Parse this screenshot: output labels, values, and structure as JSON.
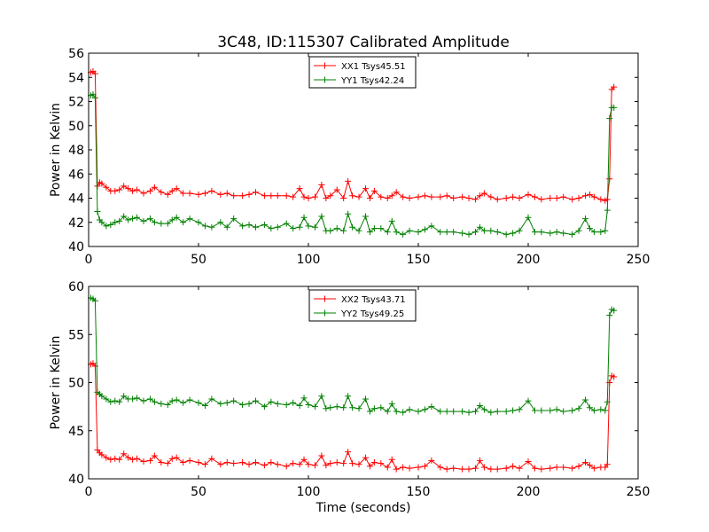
{
  "figure": {
    "title": "3C48, ID:115307 Calibrated Amplitude"
  },
  "chart_data": [
    {
      "type": "line",
      "title": "3C48, ID:115307 Calibrated Amplitude",
      "xlabel": "",
      "ylabel": "Power in Kelvin",
      "xlim": [
        0,
        250
      ],
      "ylim": [
        40,
        56
      ],
      "xticks": [
        0,
        50,
        100,
        150,
        200,
        250
      ],
      "yticks": [
        40,
        42,
        44,
        46,
        48,
        50,
        52,
        54,
        56
      ],
      "legend_position": "top-center",
      "grid": false,
      "series": [
        {
          "name": "XX1 Tsys45.51",
          "color": "#ff0000",
          "x": [
            1,
            2,
            3,
            4,
            5,
            6,
            8,
            10,
            12,
            14,
            16,
            18,
            20,
            22,
            25,
            28,
            30,
            33,
            36,
            38,
            40,
            43,
            46,
            50,
            53,
            56,
            60,
            63,
            66,
            70,
            73,
            76,
            80,
            83,
            86,
            90,
            93,
            96,
            98,
            100,
            103,
            106,
            108,
            110,
            113,
            116,
            118,
            120,
            123,
            126,
            128,
            130,
            133,
            136,
            138,
            140,
            143,
            146,
            150,
            153,
            156,
            160,
            163,
            166,
            170,
            173,
            176,
            178,
            180,
            183,
            186,
            190,
            193,
            196,
            200,
            203,
            206,
            210,
            213,
            216,
            220,
            223,
            226,
            228,
            230,
            233,
            235,
            236,
            237,
            238,
            239
          ],
          "values": [
            54.4,
            54.5,
            54.3,
            45.0,
            45.3,
            45.2,
            44.9,
            44.6,
            44.6,
            44.7,
            45.0,
            44.8,
            44.6,
            44.7,
            44.4,
            44.6,
            44.9,
            44.5,
            44.3,
            44.6,
            44.8,
            44.4,
            44.4,
            44.3,
            44.4,
            44.6,
            44.3,
            44.4,
            44.2,
            44.2,
            44.3,
            44.5,
            44.2,
            44.2,
            44.2,
            44.2,
            44.1,
            44.8,
            44.1,
            44.0,
            44.1,
            45.1,
            44.0,
            44.2,
            44.7,
            44.0,
            45.4,
            44.2,
            44.1,
            44.8,
            44.0,
            44.6,
            44.1,
            44.0,
            44.2,
            44.5,
            44.1,
            44.0,
            44.1,
            44.2,
            44.1,
            44.1,
            44.2,
            44.0,
            44.1,
            44.0,
            43.9,
            44.2,
            44.4,
            44.1,
            43.9,
            44.0,
            44.1,
            44.0,
            44.3,
            44.1,
            43.9,
            44.0,
            44.0,
            44.1,
            43.9,
            44.0,
            44.2,
            44.3,
            44.1,
            43.9,
            43.8,
            43.9,
            45.6,
            53.0,
            53.2
          ]
        },
        {
          "name": "YY1 Tsys42.24",
          "color": "#008000",
          "x": [
            1,
            2,
            3,
            4,
            5,
            6,
            8,
            10,
            12,
            14,
            16,
            18,
            20,
            22,
            25,
            28,
            30,
            33,
            36,
            38,
            40,
            43,
            46,
            50,
            53,
            56,
            60,
            63,
            66,
            70,
            73,
            76,
            80,
            83,
            86,
            90,
            93,
            96,
            98,
            100,
            103,
            106,
            108,
            110,
            113,
            116,
            118,
            120,
            123,
            126,
            128,
            130,
            133,
            136,
            138,
            140,
            143,
            146,
            150,
            153,
            156,
            160,
            163,
            166,
            170,
            173,
            176,
            178,
            180,
            183,
            186,
            190,
            193,
            196,
            200,
            203,
            206,
            210,
            213,
            216,
            220,
            223,
            226,
            228,
            230,
            233,
            235,
            236,
            237,
            238,
            239
          ],
          "values": [
            52.5,
            52.6,
            52.3,
            42.9,
            42.2,
            42.0,
            41.7,
            41.8,
            42.0,
            42.1,
            42.5,
            42.2,
            42.3,
            42.4,
            42.1,
            42.3,
            42.0,
            41.9,
            41.9,
            42.2,
            42.4,
            42.0,
            42.3,
            42.0,
            41.7,
            41.6,
            42.0,
            41.6,
            42.3,
            41.7,
            41.8,
            41.6,
            41.8,
            41.5,
            41.6,
            41.9,
            41.5,
            41.6,
            42.4,
            41.7,
            41.6,
            42.5,
            41.3,
            41.3,
            41.5,
            41.3,
            42.7,
            41.6,
            41.3,
            42.5,
            41.2,
            41.5,
            41.5,
            41.2,
            42.1,
            41.2,
            41.0,
            41.3,
            41.2,
            41.4,
            41.7,
            41.2,
            41.2,
            41.2,
            41.1,
            41.0,
            41.2,
            41.6,
            41.3,
            41.3,
            41.2,
            41.0,
            41.1,
            41.3,
            42.4,
            41.2,
            41.2,
            41.1,
            41.2,
            41.1,
            41.0,
            41.3,
            42.3,
            41.5,
            41.2,
            41.2,
            41.3,
            43.0,
            50.6,
            51.5,
            51.5
          ]
        }
      ]
    },
    {
      "type": "line",
      "title": "",
      "xlabel": "Time (seconds)",
      "ylabel": "Power in Kelvin",
      "xlim": [
        0,
        250
      ],
      "ylim": [
        40,
        60
      ],
      "xticks": [
        0,
        50,
        100,
        150,
        200,
        250
      ],
      "yticks": [
        40,
        45,
        50,
        55,
        60
      ],
      "legend_position": "top-center",
      "grid": false,
      "series": [
        {
          "name": "XX2 Tsys43.71",
          "color": "#ff0000",
          "x": [
            1,
            2,
            3,
            4,
            5,
            6,
            8,
            10,
            12,
            14,
            16,
            18,
            20,
            22,
            25,
            28,
            30,
            33,
            36,
            38,
            40,
            43,
            46,
            50,
            53,
            56,
            60,
            63,
            66,
            70,
            73,
            76,
            80,
            83,
            86,
            90,
            93,
            96,
            98,
            100,
            103,
            106,
            108,
            110,
            113,
            116,
            118,
            120,
            123,
            126,
            128,
            130,
            133,
            136,
            138,
            140,
            143,
            146,
            150,
            153,
            156,
            160,
            163,
            166,
            170,
            173,
            176,
            178,
            180,
            183,
            186,
            190,
            193,
            196,
            200,
            203,
            206,
            210,
            213,
            216,
            220,
            223,
            226,
            228,
            230,
            233,
            235,
            236,
            237,
            238,
            239
          ],
          "values": [
            51.9,
            52.0,
            51.7,
            43.0,
            42.7,
            42.5,
            42.2,
            42.0,
            42.1,
            42.0,
            42.6,
            42.2,
            42.0,
            42.1,
            41.8,
            41.9,
            42.4,
            41.7,
            41.6,
            42.1,
            42.2,
            41.7,
            41.9,
            41.7,
            41.5,
            42.1,
            41.5,
            41.7,
            41.6,
            41.7,
            41.5,
            41.7,
            41.4,
            41.7,
            41.5,
            41.3,
            41.6,
            41.5,
            42.0,
            41.5,
            41.4,
            42.4,
            41.4,
            41.6,
            41.7,
            41.6,
            42.8,
            41.6,
            41.5,
            42.2,
            41.3,
            41.7,
            41.6,
            41.2,
            42.0,
            41.0,
            41.2,
            41.1,
            41.2,
            41.3,
            41.9,
            41.2,
            41.0,
            41.1,
            41.0,
            41.0,
            41.1,
            41.9,
            41.2,
            41.0,
            41.0,
            41.1,
            41.3,
            41.1,
            41.8,
            41.1,
            41.0,
            41.1,
            41.2,
            41.2,
            41.1,
            41.3,
            41.7,
            41.4,
            41.1,
            41.2,
            41.2,
            41.5,
            50.0,
            50.7,
            50.6
          ]
        },
        {
          "name": "YY2 Tsys49.25",
          "color": "#008000",
          "x": [
            1,
            2,
            3,
            4,
            5,
            6,
            8,
            10,
            12,
            14,
            16,
            18,
            20,
            22,
            25,
            28,
            30,
            33,
            36,
            38,
            40,
            43,
            46,
            50,
            53,
            56,
            60,
            63,
            66,
            70,
            73,
            76,
            80,
            83,
            86,
            90,
            93,
            96,
            98,
            100,
            103,
            106,
            108,
            110,
            113,
            116,
            118,
            120,
            123,
            126,
            128,
            130,
            133,
            136,
            138,
            140,
            143,
            146,
            150,
            153,
            156,
            160,
            163,
            166,
            170,
            173,
            176,
            178,
            180,
            183,
            186,
            190,
            193,
            196,
            200,
            203,
            206,
            210,
            213,
            216,
            220,
            223,
            226,
            228,
            230,
            233,
            235,
            236,
            237,
            238,
            239
          ],
          "values": [
            58.8,
            58.7,
            58.5,
            49.0,
            48.8,
            48.6,
            48.3,
            48.0,
            48.1,
            48.0,
            48.6,
            48.3,
            48.3,
            48.4,
            48.1,
            48.3,
            48.0,
            47.8,
            47.7,
            48.1,
            48.2,
            47.9,
            48.2,
            47.9,
            47.6,
            48.3,
            47.8,
            47.9,
            48.1,
            47.7,
            47.8,
            48.1,
            47.5,
            48.0,
            47.8,
            47.7,
            47.9,
            47.6,
            48.4,
            47.7,
            47.5,
            48.6,
            47.3,
            47.4,
            47.5,
            47.4,
            48.6,
            47.4,
            47.3,
            48.3,
            47.0,
            47.3,
            47.4,
            47.0,
            47.8,
            47.0,
            46.9,
            47.2,
            47.0,
            47.2,
            47.5,
            47.0,
            47.0,
            47.0,
            47.0,
            46.9,
            47.0,
            47.6,
            47.2,
            46.9,
            47.0,
            47.0,
            47.1,
            47.2,
            48.1,
            47.1,
            47.1,
            47.1,
            47.2,
            47.0,
            47.1,
            47.3,
            48.2,
            47.4,
            47.1,
            47.2,
            47.1,
            48.0,
            57.0,
            57.6,
            57.5
          ]
        }
      ]
    }
  ]
}
